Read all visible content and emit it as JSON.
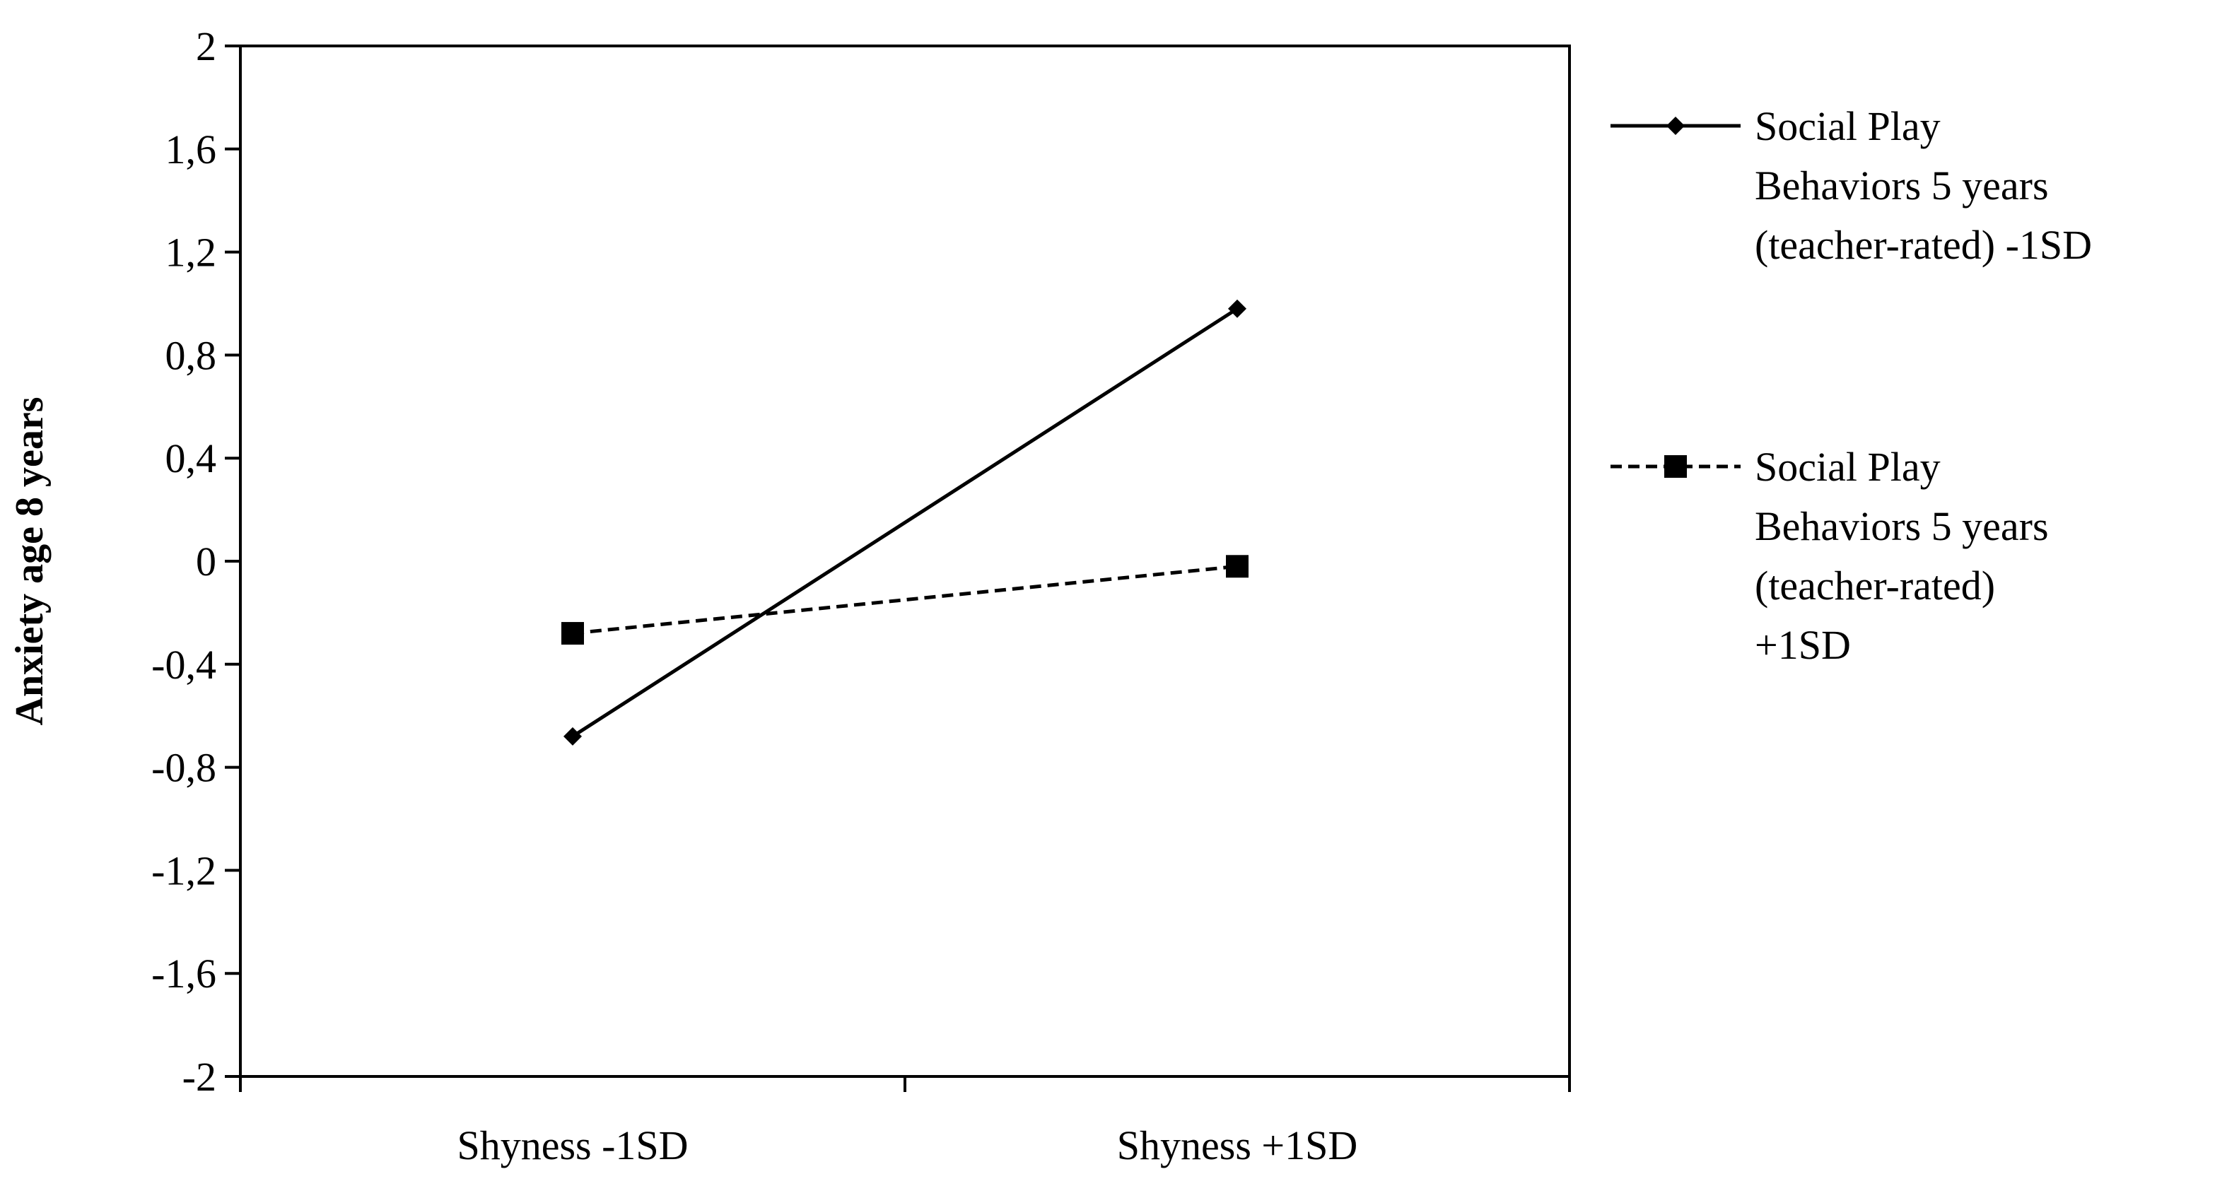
{
  "chart_data": {
    "type": "line",
    "title": "",
    "xlabel": "",
    "ylabel": "Anxiety  age 8 years",
    "categories": [
      "Shyness -1SD",
      "Shyness +1SD"
    ],
    "ylim": [
      -2,
      2
    ],
    "yticks": [
      2,
      1.6,
      1.2,
      0.8,
      0.4,
      0,
      -0.4,
      -0.8,
      -1.2,
      -1.6,
      -2
    ],
    "ytick_labels": [
      "2",
      "1,6",
      "1,2",
      "0,8",
      "0,4",
      "0",
      "-0,4",
      "-0,8",
      "-1,2",
      "-1,6",
      "-2"
    ],
    "grid": false,
    "legend_position": "right",
    "series": [
      {
        "name": "Social Play Behaviors 5 years (teacher-rated) -1SD",
        "legend_lines": [
          "Social Play",
          "Behaviors 5 years",
          "(teacher-rated) -1SD"
        ],
        "values": [
          -0.68,
          0.98
        ],
        "line_style": "solid",
        "marker": "diamond",
        "color": "#000000"
      },
      {
        "name": "Social Play Behaviors 5 years (teacher-rated) +1SD",
        "legend_lines": [
          "Social Play",
          "Behaviors 5 years",
          "(teacher-rated)",
          "+1SD"
        ],
        "values": [
          -0.28,
          -0.02
        ],
        "line_style": "dashed",
        "marker": "square",
        "color": "#000000"
      }
    ]
  }
}
